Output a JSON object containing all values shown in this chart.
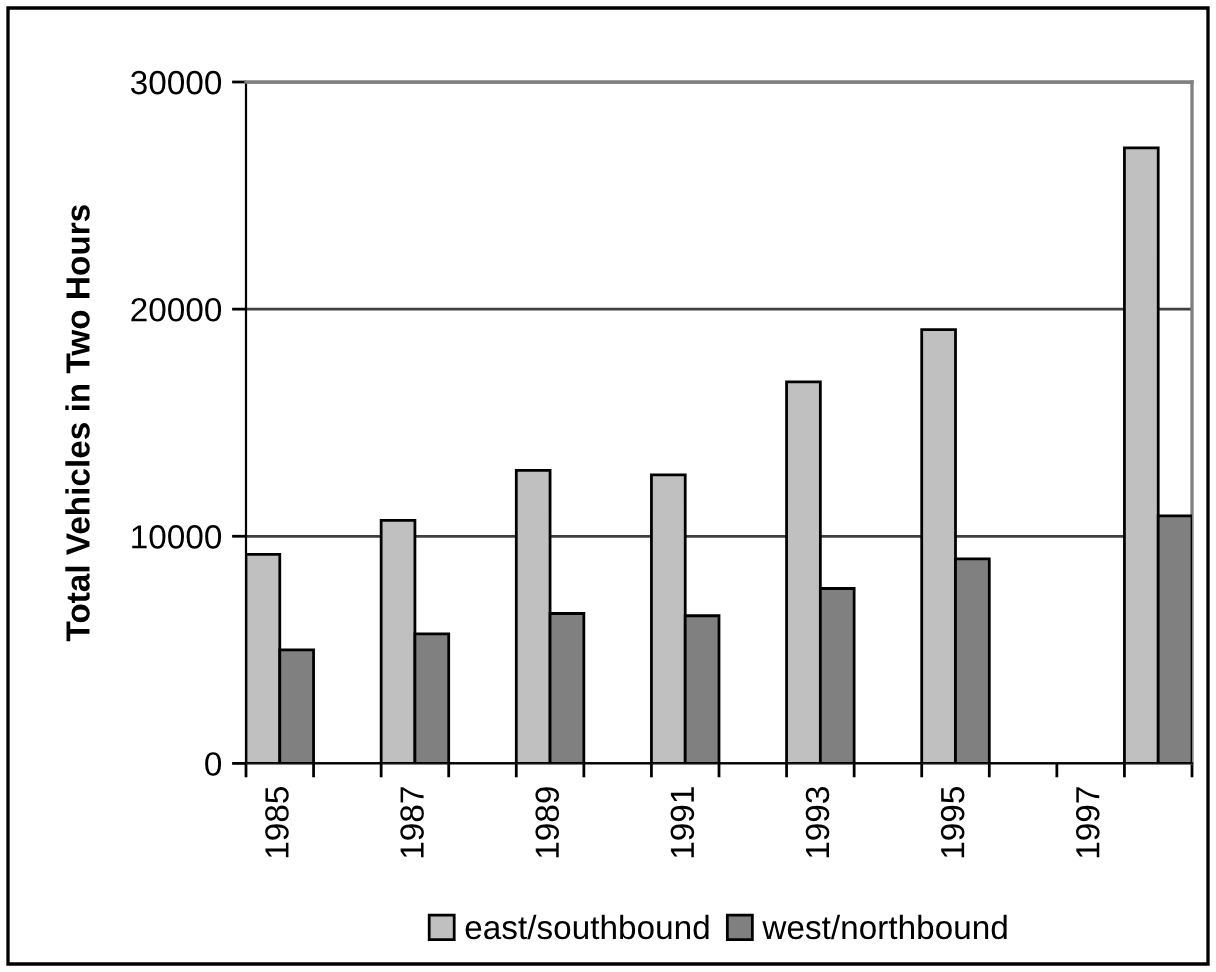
{
  "chart_data": {
    "type": "bar",
    "ylabel": "Total Vehicles in Two Hours",
    "categories": [
      "1985",
      null,
      "1987",
      null,
      "1989",
      null,
      "1991",
      null,
      "1993",
      null,
      "1995",
      null,
      "1997",
      null
    ],
    "series": [
      {
        "name": "east/southbound",
        "color": "#c0c0c0",
        "values": [
          9200,
          null,
          10700,
          null,
          12900,
          null,
          12700,
          null,
          16800,
          null,
          19100,
          null,
          null,
          27100
        ]
      },
      {
        "name": "west/northbound",
        "color": "#808080",
        "values": [
          5000,
          null,
          5700,
          null,
          6600,
          null,
          6500,
          null,
          7700,
          null,
          9000,
          null,
          null,
          10900
        ]
      }
    ],
    "ylim": [
      0,
      30000
    ],
    "yticks": [
      0,
      10000,
      20000,
      30000
    ],
    "grid": "y",
    "legend": "bottom"
  }
}
